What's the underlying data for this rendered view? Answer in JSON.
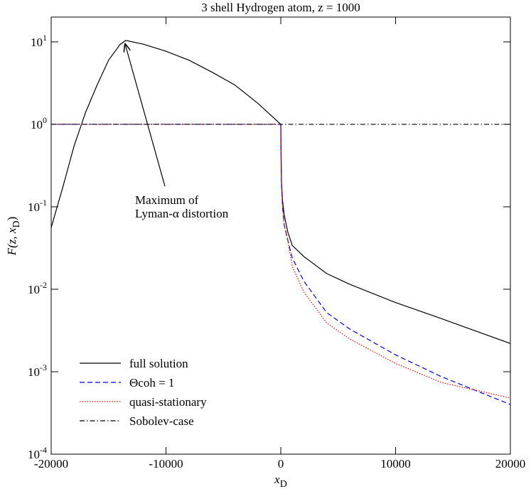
{
  "chart_data": {
    "type": "line",
    "title": "3 shell Hydrogen atom, z = 1000",
    "xlabel": {
      "text": "x",
      "sub": "D"
    },
    "ylabel": {
      "text": "F(z, x",
      "sub": "D",
      "tail": ")"
    },
    "xlim": [
      -20000,
      20000
    ],
    "xticks": [
      -20000,
      -10000,
      0,
      10000,
      20000
    ],
    "ylim": [
      0.0001,
      20
    ],
    "yscale": "log",
    "yticks": [
      {
        "value": 0.0001,
        "label": "10",
        "exp": "-4"
      },
      {
        "value": 0.001,
        "label": "10",
        "exp": "-3"
      },
      {
        "value": 0.01,
        "label": "10",
        "exp": "-2"
      },
      {
        "value": 0.1,
        "label": "10",
        "exp": "-1"
      },
      {
        "value": 1,
        "label": "10",
        "exp": "0"
      },
      {
        "value": 10,
        "label": "10",
        "exp": "1"
      }
    ],
    "legend": "lower left",
    "annotation": {
      "lines": [
        "Maximum of",
        "Lyman-α distortion"
      ]
    },
    "series": [
      {
        "name": "full solution",
        "color": "#000000",
        "dash": "none",
        "x": [
          -20000,
          -19000,
          -18000,
          -17000,
          -16000,
          -15000,
          -14000,
          -13500,
          -12000,
          -10000,
          -8000,
          -6000,
          -4000,
          -2000,
          0,
          20,
          60,
          150,
          300,
          600,
          1000,
          2000,
          4000,
          6000,
          10000,
          14000,
          20000
        ],
        "values": [
          0.056,
          0.17,
          0.55,
          1.4,
          3.0,
          6.0,
          9.3,
          10.4,
          9.4,
          7.7,
          6.0,
          4.3,
          3.0,
          1.8,
          1,
          0.5,
          0.2,
          0.12,
          0.08,
          0.05,
          0.034,
          0.025,
          0.0155,
          0.0115,
          0.0069,
          0.0044,
          0.0022
        ]
      },
      {
        "name": "Θcoh = 1",
        "color": "#0000ee",
        "dash": "7,4",
        "x": [
          -20000,
          0,
          20,
          60,
          150,
          300,
          600,
          1000,
          2000,
          4000,
          6000,
          10000,
          14000,
          20000
        ],
        "values": [
          1,
          1,
          0.5,
          0.2,
          0.1,
          0.06,
          0.04,
          0.024,
          0.0126,
          0.0052,
          0.0033,
          0.0016,
          0.00087,
          0.0004
        ]
      },
      {
        "name": "quasi-stationary",
        "color": "#ff0000",
        "dash": "1.5,2",
        "x": [
          -20000,
          0,
          20,
          60,
          150,
          300,
          600,
          1000,
          2000,
          4000,
          6000,
          10000,
          14000,
          20000
        ],
        "values": [
          1,
          1,
          0.5,
          0.2,
          0.1,
          0.06,
          0.04,
          0.019,
          0.0093,
          0.0039,
          0.0025,
          0.00126,
          0.00074,
          0.00048
        ]
      },
      {
        "name": "Sobolev-case",
        "color": "#000000",
        "dash": "7,3,1.5,3",
        "x": [
          -20000,
          20000
        ],
        "values": [
          1,
          1
        ]
      }
    ]
  }
}
